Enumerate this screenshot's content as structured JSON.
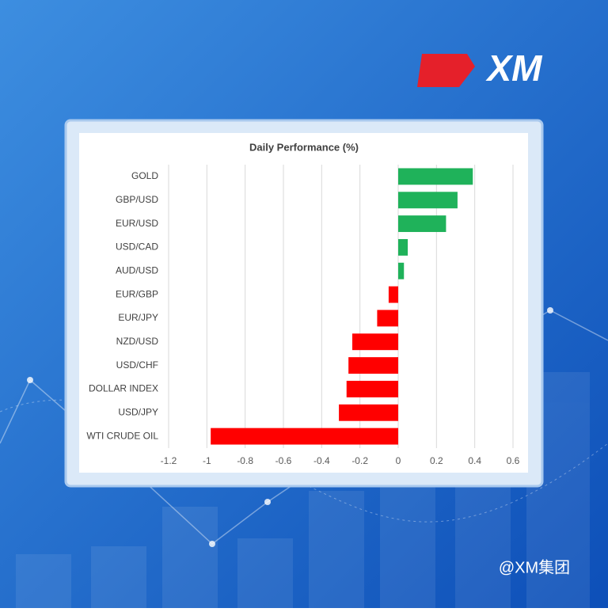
{
  "logo": "XM",
  "watermark": "@XM集团",
  "chart_data": {
    "type": "hbar",
    "title": "Daily Performance (%)",
    "categories": [
      "GOLD",
      "GBP/USD",
      "EUR/USD",
      "USD/CAD",
      "AUD/USD",
      "EUR/GBP",
      "EUR/JPY",
      "NZD/USD",
      "USD/CHF",
      "DOLLAR INDEX",
      "USD/JPY",
      "WTI CRUDE OIL"
    ],
    "values": [
      0.39,
      0.31,
      0.25,
      0.05,
      0.03,
      -0.05,
      -0.11,
      -0.24,
      -0.26,
      -0.27,
      -0.31,
      -0.98
    ],
    "positive_color": "#1fb25a",
    "negative_color": "#ff0000",
    "xlim": [
      -1.2,
      0.6
    ],
    "xticks": [
      -1.2,
      -1,
      -0.8,
      -0.6,
      -0.4,
      -0.2,
      0,
      0.2,
      0.4,
      0.6
    ],
    "grid": true
  }
}
